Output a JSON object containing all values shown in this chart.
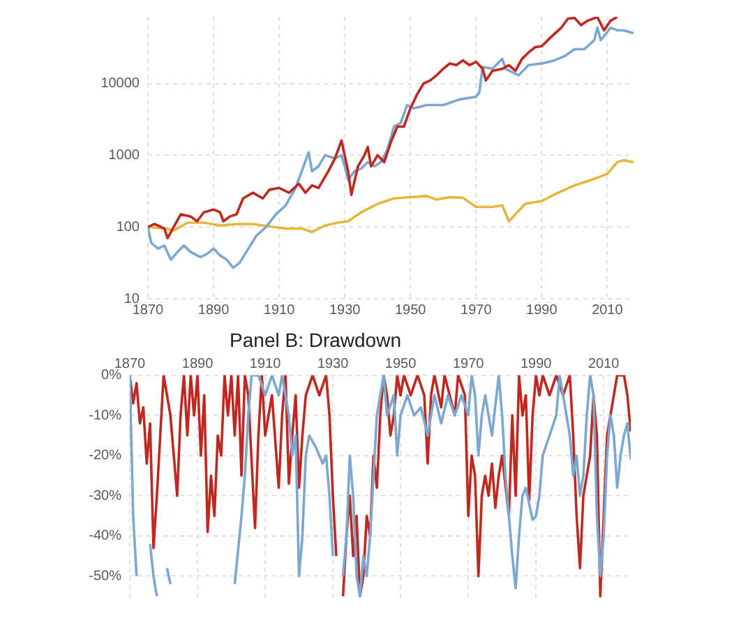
{
  "chart_data": [
    {
      "type": "line",
      "log": "y",
      "grid": true,
      "line_style": "solid",
      "marker": "none",
      "legend": false,
      "xlim": [
        1870,
        2018
      ],
      "xticks": [
        1870,
        1890,
        1910,
        1930,
        1950,
        1970,
        1990,
        2010
      ],
      "ylim": [
        10,
        85000
      ],
      "yticks": [
        10,
        100,
        1000,
        10000
      ],
      "series": [
        {
          "color": "#c0281f",
          "x": [
            1870,
            1872,
            1875,
            1876,
            1880,
            1883,
            1885,
            1887,
            1890,
            1892,
            1893,
            1895,
            1897,
            1899,
            1902,
            1905,
            1907,
            1910,
            1913,
            1916,
            1918,
            1920,
            1922,
            1925,
            1927,
            1929,
            1931,
            1932,
            1934,
            1936,
            1937,
            1938,
            1940,
            1942,
            1944,
            1946,
            1948,
            1950,
            1952,
            1954,
            1956,
            1958,
            1960,
            1962,
            1964,
            1966,
            1968,
            1970,
            1972,
            1973,
            1975,
            1978,
            1980,
            1982,
            1984,
            1986,
            1988,
            1990,
            1993,
            1996,
            1998,
            2000,
            2002,
            2004,
            2007,
            2009,
            2011,
            2013
          ],
          "values": [
            100,
            110,
            95,
            70,
            150,
            140,
            120,
            160,
            175,
            160,
            120,
            140,
            150,
            250,
            300,
            250,
            330,
            350,
            300,
            400,
            300,
            380,
            350,
            600,
            900,
            1600,
            600,
            280,
            700,
            1000,
            1300,
            700,
            1000,
            800,
            1500,
            2500,
            2500,
            4500,
            7000,
            10000,
            11000,
            13000,
            16000,
            19000,
            18000,
            21000,
            18000,
            20000,
            16000,
            11000,
            15000,
            16000,
            18000,
            15000,
            22000,
            27000,
            32000,
            33000,
            45000,
            60000,
            80000,
            82000,
            65000,
            75000,
            84000,
            55000,
            75000,
            84000
          ]
        },
        {
          "color": "#7ba7d0",
          "x": [
            1870,
            1871,
            1873,
            1875,
            1877,
            1879,
            1881,
            1883,
            1886,
            1888,
            1890,
            1892,
            1894,
            1896,
            1898,
            1900,
            1903,
            1906,
            1909,
            1912,
            1915,
            1919,
            1920,
            1922,
            1924,
            1927,
            1929,
            1930,
            1931,
            1933,
            1935,
            1937,
            1939,
            1941,
            1943,
            1945,
            1947,
            1949,
            1951,
            1955,
            1960,
            1965,
            1970,
            1971,
            1972,
            1975,
            1978,
            1979,
            1983,
            1986,
            1990,
            1994,
            1997,
            2000,
            2003,
            2006,
            2007,
            2008,
            2011,
            2013,
            2015,
            2018
          ],
          "values": [
            100,
            60,
            50,
            55,
            35,
            45,
            55,
            45,
            38,
            42,
            50,
            40,
            35,
            27,
            32,
            45,
            75,
            100,
            150,
            200,
            350,
            1100,
            600,
            700,
            1000,
            900,
            1000,
            700,
            450,
            600,
            650,
            800,
            700,
            800,
            1200,
            2500,
            2800,
            5000,
            4500,
            5000,
            5000,
            6000,
            6500,
            7500,
            17000,
            16000,
            22000,
            16000,
            13000,
            18000,
            19000,
            21000,
            24000,
            30000,
            30000,
            40000,
            60000,
            40000,
            60000,
            55000,
            55000,
            50000
          ]
        },
        {
          "color": "#e3b83a",
          "x": [
            1870,
            1875,
            1878,
            1882,
            1887,
            1892,
            1897,
            1902,
            1907,
            1912,
            1917,
            1920,
            1924,
            1928,
            1931,
            1935,
            1940,
            1945,
            1950,
            1955,
            1958,
            1962,
            1966,
            1970,
            1975,
            1978,
            1980,
            1982,
            1985,
            1990,
            1995,
            2000,
            2005,
            2010,
            2013,
            2015,
            2018
          ],
          "values": [
            100,
            95,
            90,
            115,
            115,
            105,
            110,
            110,
            102,
            95,
            95,
            85,
            105,
            115,
            120,
            160,
            210,
            250,
            260,
            270,
            240,
            260,
            255,
            190,
            190,
            200,
            120,
            150,
            210,
            230,
            300,
            380,
            450,
            550,
            800,
            850,
            800
          ]
        }
      ]
    },
    {
      "type": "line",
      "title": "Panel B: Drawdown",
      "grid": true,
      "line_style": "solid",
      "marker": "none",
      "legend": false,
      "xlim": [
        1870,
        2018
      ],
      "xticks": [
        1870,
        1890,
        1910,
        1930,
        1950,
        1970,
        1990,
        2010
      ],
      "ylim": [
        -56,
        0
      ],
      "yticks": [
        {
          "value": 0,
          "label": "0%"
        },
        {
          "value": -10,
          "label": "-10%"
        },
        {
          "value": -20,
          "label": "-20%"
        },
        {
          "value": -30,
          "label": "-30%"
        },
        {
          "value": -40,
          "label": "-40%"
        },
        {
          "value": -50,
          "label": "-50%"
        }
      ],
      "series": [
        {
          "color": "#7ba7d0",
          "x": [
            1870,
            1871,
            1872,
            1873,
            1874,
            1875,
            1876,
            1877,
            1878,
            1879,
            1880,
            1881,
            1882,
            1883,
            1885,
            1890,
            1891,
            1892,
            1895,
            1900,
            1901,
            1903,
            1904,
            1905,
            1906,
            1908,
            1910,
            1912,
            1914,
            1915,
            1917,
            1918,
            1919,
            1920,
            1921,
            1922,
            1923,
            1925,
            1927,
            1928,
            1929,
            1930,
            1931,
            1933,
            1934,
            1935,
            1936,
            1937,
            1938,
            1939,
            1940,
            1941,
            1942,
            1943,
            1944,
            1945,
            1946,
            1948,
            1949,
            1950,
            1952,
            1954,
            1956,
            1958,
            1960,
            1962,
            1964,
            1966,
            1968,
            1970,
            1971,
            1972,
            1973,
            1974,
            1975,
            1977,
            1979,
            1980,
            1981,
            1982,
            1983,
            1984,
            1985,
            1986,
            1987,
            1988,
            1989,
            1990,
            1991,
            1992,
            1994,
            1996,
            1997,
            1998,
            2000,
            2001,
            2002,
            2003,
            2004,
            2005,
            2006,
            2007,
            2008,
            2009,
            2010,
            2011,
            2012,
            2013,
            2014,
            2015,
            2016,
            2017,
            2018
          ],
          "values": [
            0,
            -35,
            -50,
            null,
            null,
            null,
            -42,
            -50,
            -55,
            null,
            null,
            -48,
            -52,
            null,
            null,
            null,
            null,
            null,
            null,
            null,
            -52,
            -35,
            -25,
            -10,
            0,
            0,
            -5,
            0,
            -5,
            0,
            -10,
            -20,
            -15,
            -50,
            -40,
            -20,
            -15,
            -18,
            -22,
            -20,
            -30,
            -45,
            null,
            -50,
            -40,
            -20,
            -30,
            -50,
            -55,
            -45,
            -50,
            -40,
            -25,
            -10,
            -5,
            0,
            -10,
            -5,
            -20,
            -10,
            -5,
            -10,
            -8,
            -15,
            -5,
            -12,
            -5,
            -10,
            -5,
            -10,
            0,
            -5,
            -20,
            -10,
            -5,
            -15,
            0,
            -10,
            -25,
            -35,
            -45,
            -53,
            -40,
            -30,
            -28,
            -32,
            -36,
            -35,
            -30,
            -20,
            -15,
            -10,
            0,
            -5,
            -15,
            -25,
            -20,
            -30,
            -25,
            -10,
            0,
            -5,
            -35,
            -50,
            -40,
            -20,
            -10,
            -15,
            -28,
            -20,
            -15,
            -12,
            -21
          ]
        },
        {
          "color": "#c0281f",
          "x": [
            1870,
            1871,
            1872,
            1873,
            1874,
            1875,
            1876,
            1877,
            1878,
            1880,
            1881,
            1882,
            1883,
            1884,
            1885,
            1886,
            1887,
            1888,
            1889,
            1890,
            1891,
            1892,
            1893,
            1894,
            1895,
            1896,
            1897,
            1898,
            1899,
            1900,
            1901,
            1902,
            1903,
            1904,
            1905,
            1907,
            1908,
            1909,
            1910,
            1912,
            1914,
            1915,
            1916,
            1917,
            1918,
            1919,
            1920,
            1921,
            1922,
            1924,
            1926,
            1928,
            1929,
            1930,
            1931,
            1932,
            1933,
            1934,
            1935,
            1936,
            1937,
            1938,
            1939,
            1940,
            1941,
            1942,
            1943,
            1944,
            1945,
            1946,
            1947,
            1948,
            1949,
            1950,
            1951,
            1953,
            1955,
            1957,
            1958,
            1959,
            1960,
            1962,
            1963,
            1966,
            1967,
            1969,
            1970,
            1971,
            1972,
            1973,
            1974,
            1975,
            1976,
            1977,
            1978,
            1979,
            1980,
            1982,
            1983,
            1984,
            1985,
            1986,
            1987,
            1988,
            1989,
            1990,
            1991,
            1992,
            1994,
            1996,
            1998,
            2000,
            2001,
            2002,
            2003,
            2004,
            2005,
            2006,
            2007,
            2008,
            2009,
            2010,
            2011,
            2012,
            2013,
            2014,
            2016,
            2017,
            2018
          ],
          "values": [
            0,
            -7,
            -2,
            -12,
            -8,
            -22,
            -12,
            -43,
            -30,
            0,
            -5,
            -10,
            -20,
            -30,
            -10,
            0,
            -15,
            0,
            -10,
            0,
            -20,
            -5,
            -39,
            -25,
            -35,
            -15,
            -20,
            0,
            -10,
            0,
            -15,
            0,
            -25,
            0,
            -5,
            -38,
            -15,
            0,
            -15,
            -5,
            -28,
            -10,
            0,
            -27,
            -15,
            -5,
            -28,
            -15,
            -5,
            0,
            -5,
            0,
            -10,
            -30,
            -45,
            null,
            -55,
            -40,
            -30,
            -45,
            -35,
            -55,
            -50,
            -35,
            -40,
            -20,
            -28,
            -10,
            0,
            -5,
            -15,
            -10,
            0,
            -5,
            0,
            -5,
            0,
            -5,
            -22,
            -5,
            0,
            -8,
            0,
            -10,
            0,
            -5,
            -35,
            -20,
            -25,
            -50,
            -30,
            -25,
            -30,
            -22,
            -33,
            -25,
            -20,
            -35,
            -10,
            -30,
            0,
            -10,
            -5,
            -31,
            -10,
            0,
            -5,
            0,
            -5,
            0,
            -5,
            0,
            -15,
            -35,
            -48,
            -30,
            -25,
            -20,
            -5,
            -15,
            -55,
            -35,
            -15,
            -10,
            -5,
            0,
            0,
            -5,
            -14
          ]
        }
      ]
    }
  ]
}
